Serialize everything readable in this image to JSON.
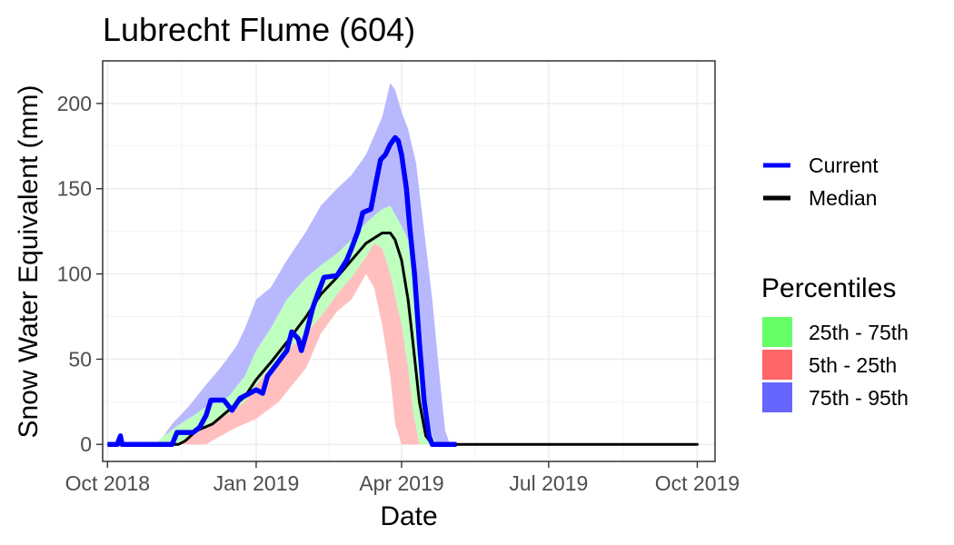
{
  "chart_data": {
    "type": "area",
    "title": "Lubrecht Flume (604)",
    "xlabel": "Date",
    "ylabel": "Snow Water Equivalent (mm)",
    "x_range": [
      "2018-09-28",
      "2019-10-12"
    ],
    "ylim": [
      -10,
      225
    ],
    "x_ticks": [
      {
        "date": "2018-10-01",
        "label": "Oct 2018"
      },
      {
        "date": "2019-01-01",
        "label": "Jan 2019"
      },
      {
        "date": "2019-04-01",
        "label": "Apr 2019"
      },
      {
        "date": "2019-07-01",
        "label": "Jul 2019"
      },
      {
        "date": "2019-10-01",
        "label": "Oct 2019"
      }
    ],
    "y_ticks": [
      0,
      50,
      100,
      150,
      200
    ],
    "grid": true,
    "legend_lines": [
      {
        "label": "Current",
        "color": "#0000ff"
      },
      {
        "label": "Median",
        "color": "#000000"
      }
    ],
    "legend_bands_title": "Percentiles",
    "legend_bands": [
      {
        "label": "25th - 75th",
        "color": "#66ff66"
      },
      {
        "label": "5th - 25th",
        "color": "#ff6666"
      },
      {
        "label": "75th - 95th",
        "color": "#6666ff"
      }
    ],
    "band_colors": {
      "p75_95": "#b8b8ff",
      "p25_75": "#bfffbf",
      "p5_25": "#ffbfbf"
    },
    "series": {
      "p95": [
        [
          "2018-10-01",
          0
        ],
        [
          "2018-10-15",
          0
        ],
        [
          "2018-11-01",
          0
        ],
        [
          "2018-11-10",
          12
        ],
        [
          "2018-11-20",
          22
        ],
        [
          "2018-12-01",
          35
        ],
        [
          "2018-12-10",
          45
        ],
        [
          "2018-12-20",
          58
        ],
        [
          "2018-12-25",
          68
        ],
        [
          "2019-01-01",
          85
        ],
        [
          "2019-01-10",
          92
        ],
        [
          "2019-01-20",
          108
        ],
        [
          "2019-02-01",
          125
        ],
        [
          "2019-02-10",
          140
        ],
        [
          "2019-02-20",
          150
        ],
        [
          "2019-03-01",
          158
        ],
        [
          "2019-03-10",
          170
        ],
        [
          "2019-03-20",
          192
        ],
        [
          "2019-03-25",
          212
        ],
        [
          "2019-03-28",
          208
        ],
        [
          "2019-04-01",
          195
        ],
        [
          "2019-04-05",
          185
        ],
        [
          "2019-04-10",
          165
        ],
        [
          "2019-04-15",
          125
        ],
        [
          "2019-04-20",
          85
        ],
        [
          "2019-04-25",
          35
        ],
        [
          "2019-04-28",
          8
        ],
        [
          "2019-05-01",
          0
        ],
        [
          "2019-10-01",
          0
        ]
      ],
      "p75": [
        [
          "2018-10-01",
          0
        ],
        [
          "2018-10-30",
          0
        ],
        [
          "2018-11-05",
          5
        ],
        [
          "2018-11-15",
          12
        ],
        [
          "2018-11-25",
          18
        ],
        [
          "2018-12-01",
          22
        ],
        [
          "2018-12-15",
          28
        ],
        [
          "2018-12-25",
          40
        ],
        [
          "2019-01-01",
          55
        ],
        [
          "2019-01-10",
          68
        ],
        [
          "2019-01-20",
          85
        ],
        [
          "2019-02-01",
          98
        ],
        [
          "2019-02-10",
          105
        ],
        [
          "2019-02-20",
          112
        ],
        [
          "2019-03-01",
          120
        ],
        [
          "2019-03-10",
          130
        ],
        [
          "2019-03-20",
          138
        ],
        [
          "2019-03-25",
          140
        ],
        [
          "2019-04-01",
          128
        ],
        [
          "2019-04-05",
          120
        ],
        [
          "2019-04-10",
          80
        ],
        [
          "2019-04-15",
          30
        ],
        [
          "2019-04-20",
          5
        ],
        [
          "2019-04-23",
          0
        ],
        [
          "2019-10-01",
          0
        ]
      ],
      "p25": [
        [
          "2018-10-01",
          0
        ],
        [
          "2018-11-15",
          0
        ],
        [
          "2018-11-20",
          5
        ],
        [
          "2018-12-01",
          10
        ],
        [
          "2018-12-15",
          18
        ],
        [
          "2018-12-25",
          25
        ],
        [
          "2019-01-01",
          35
        ],
        [
          "2019-01-10",
          45
        ],
        [
          "2019-01-20",
          55
        ],
        [
          "2019-02-01",
          65
        ],
        [
          "2019-02-10",
          75
        ],
        [
          "2019-02-20",
          88
        ],
        [
          "2019-03-01",
          98
        ],
        [
          "2019-03-10",
          110
        ],
        [
          "2019-03-15",
          118
        ],
        [
          "2019-03-20",
          115
        ],
        [
          "2019-03-25",
          100
        ],
        [
          "2019-04-01",
          70
        ],
        [
          "2019-04-05",
          45
        ],
        [
          "2019-04-08",
          20
        ],
        [
          "2019-04-12",
          0
        ],
        [
          "2019-10-01",
          0
        ]
      ],
      "p5": [
        [
          "2018-10-01",
          0
        ],
        [
          "2018-12-01",
          0
        ],
        [
          "2018-12-10",
          5
        ],
        [
          "2018-12-20",
          10
        ],
        [
          "2019-01-01",
          15
        ],
        [
          "2019-01-15",
          25
        ],
        [
          "2019-02-01",
          45
        ],
        [
          "2019-02-10",
          65
        ],
        [
          "2019-02-20",
          78
        ],
        [
          "2019-03-01",
          85
        ],
        [
          "2019-03-10",
          100
        ],
        [
          "2019-03-15",
          92
        ],
        [
          "2019-03-20",
          70
        ],
        [
          "2019-03-25",
          40
        ],
        [
          "2019-03-28",
          12
        ],
        [
          "2019-04-01",
          0
        ],
        [
          "2019-10-01",
          0
        ]
      ],
      "median": [
        [
          "2018-10-01",
          0
        ],
        [
          "2018-11-14",
          0
        ],
        [
          "2018-11-18",
          2
        ],
        [
          "2018-11-25",
          8
        ],
        [
          "2018-12-05",
          12
        ],
        [
          "2018-12-15",
          20
        ],
        [
          "2018-12-25",
          28
        ],
        [
          "2019-01-01",
          38
        ],
        [
          "2019-01-10",
          48
        ],
        [
          "2019-01-20",
          60
        ],
        [
          "2019-02-01",
          75
        ],
        [
          "2019-02-10",
          88
        ],
        [
          "2019-02-20",
          98
        ],
        [
          "2019-03-01",
          108
        ],
        [
          "2019-03-10",
          118
        ],
        [
          "2019-03-20",
          124
        ],
        [
          "2019-03-25",
          124
        ],
        [
          "2019-03-28",
          120
        ],
        [
          "2019-04-01",
          108
        ],
        [
          "2019-04-05",
          85
        ],
        [
          "2019-04-08",
          60
        ],
        [
          "2019-04-12",
          25
        ],
        [
          "2019-04-16",
          5
        ],
        [
          "2019-04-20",
          0
        ],
        [
          "2019-10-01",
          0
        ]
      ],
      "current": [
        [
          "2018-10-01",
          0
        ],
        [
          "2018-10-07",
          0
        ],
        [
          "2018-10-09",
          5
        ],
        [
          "2018-10-10",
          0
        ],
        [
          "2018-11-10",
          0
        ],
        [
          "2018-11-13",
          7
        ],
        [
          "2018-11-23",
          7
        ],
        [
          "2018-11-27",
          10
        ],
        [
          "2018-12-01",
          17
        ],
        [
          "2018-12-04",
          26
        ],
        [
          "2018-12-12",
          26
        ],
        [
          "2018-12-17",
          20
        ],
        [
          "2018-12-22",
          27
        ],
        [
          "2018-12-28",
          30
        ],
        [
          "2019-01-01",
          32
        ],
        [
          "2019-01-05",
          30
        ],
        [
          "2019-01-08",
          40
        ],
        [
          "2019-01-12",
          45
        ],
        [
          "2019-01-20",
          55
        ],
        [
          "2019-01-23",
          66
        ],
        [
          "2019-01-27",
          62
        ],
        [
          "2019-01-29",
          55
        ],
        [
          "2019-02-01",
          65
        ],
        [
          "2019-02-05",
          80
        ],
        [
          "2019-02-08",
          88
        ],
        [
          "2019-02-12",
          98
        ],
        [
          "2019-02-20",
          99
        ],
        [
          "2019-02-26",
          108
        ],
        [
          "2019-03-01",
          115
        ],
        [
          "2019-03-05",
          125
        ],
        [
          "2019-03-08",
          136
        ],
        [
          "2019-03-13",
          138
        ],
        [
          "2019-03-16",
          153
        ],
        [
          "2019-03-19",
          167
        ],
        [
          "2019-03-22",
          170
        ],
        [
          "2019-03-25",
          176
        ],
        [
          "2019-03-28",
          180
        ],
        [
          "2019-03-30",
          178
        ],
        [
          "2019-04-01",
          170
        ],
        [
          "2019-04-04",
          150
        ],
        [
          "2019-04-06",
          128
        ],
        [
          "2019-04-09",
          100
        ],
        [
          "2019-04-12",
          60
        ],
        [
          "2019-04-15",
          25
        ],
        [
          "2019-04-18",
          5
        ],
        [
          "2019-04-20",
          0
        ],
        [
          "2019-05-05",
          0
        ]
      ],
      "median_rest": [
        [
          "2019-04-20",
          0
        ],
        [
          "2019-10-01",
          0
        ]
      ]
    }
  }
}
